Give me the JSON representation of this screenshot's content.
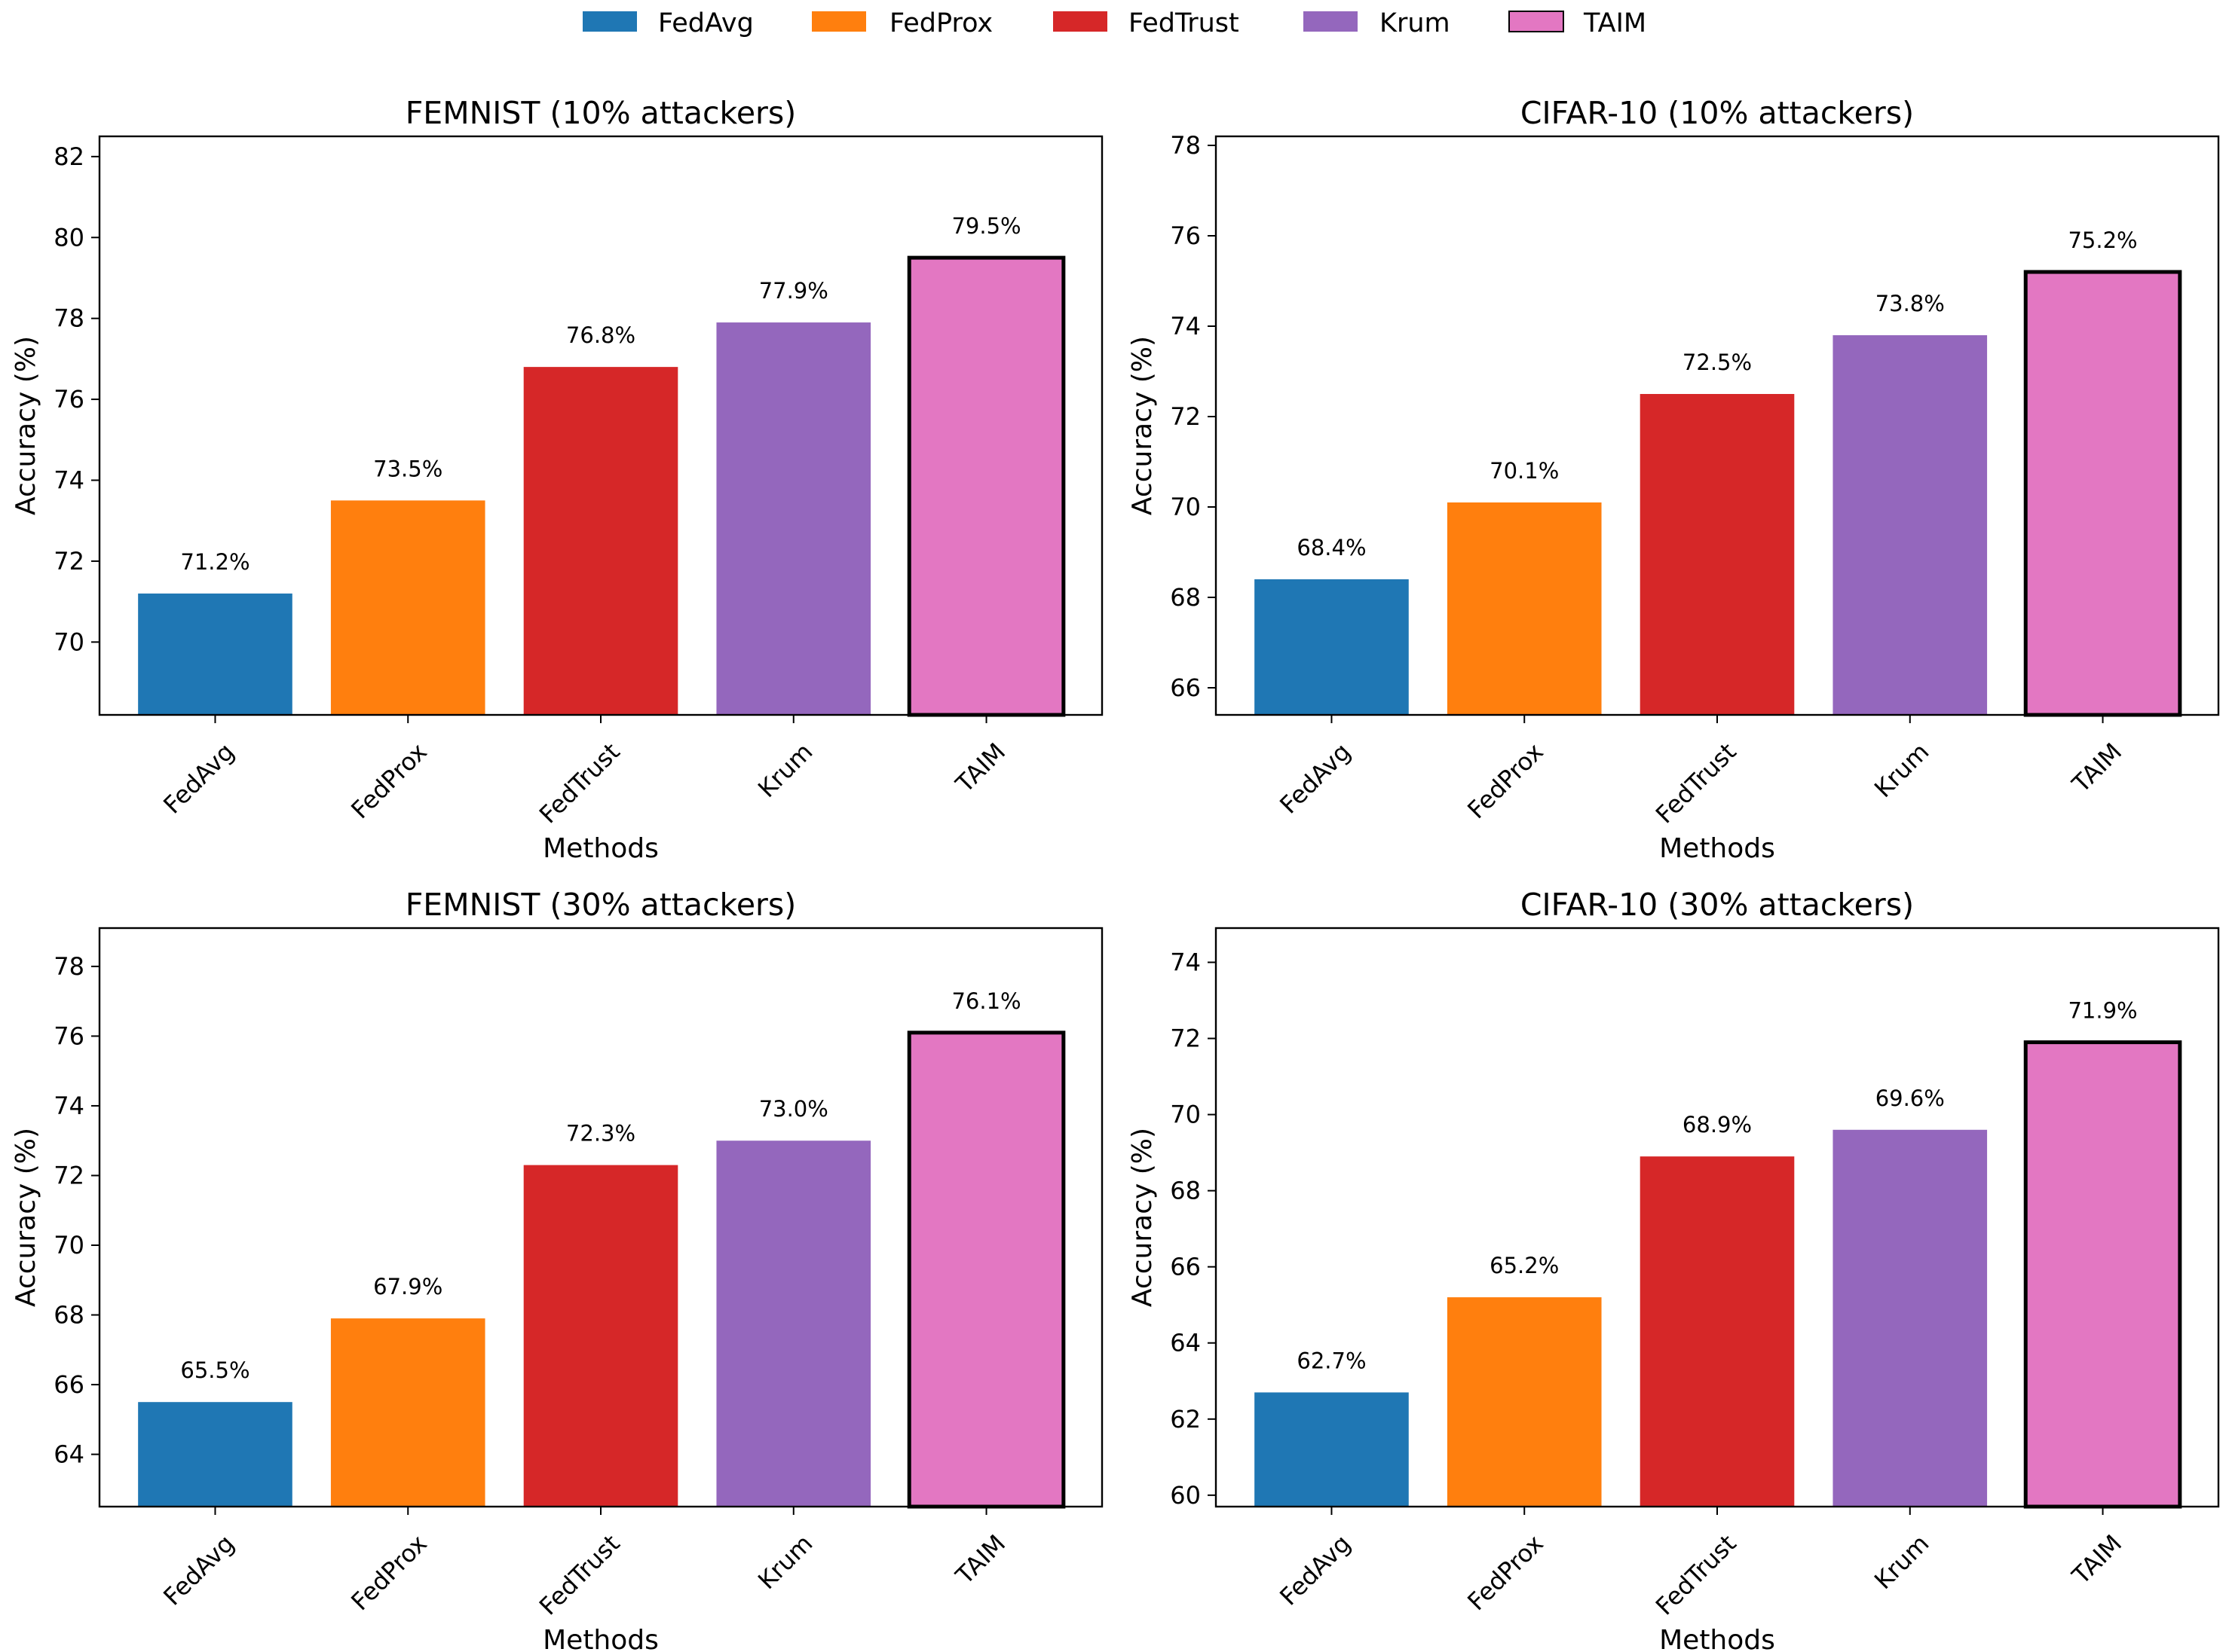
{
  "legend": {
    "items": [
      {
        "label": "FedAvg",
        "color": "#1f77b4"
      },
      {
        "label": "FedProx",
        "color": "#ff7f0e"
      },
      {
        "label": "FedTrust",
        "color": "#d62728"
      },
      {
        "label": "Krum",
        "color": "#9467bd"
      },
      {
        "label": "TAIM",
        "color": "#e377c2"
      }
    ]
  },
  "chart_data": [
    {
      "type": "bar",
      "title": "FEMNIST (10% attackers)",
      "categories": [
        "FedAvg",
        "FedProx",
        "FedTrust",
        "Krum",
        "TAIM"
      ],
      "values": [
        71.2,
        73.5,
        76.8,
        77.9,
        79.5
      ],
      "value_labels": [
        "71.2%",
        "73.5%",
        "76.8%",
        "77.9%",
        "79.5%"
      ],
      "xlabel": "Methods",
      "ylabel": "Accuracy (%)",
      "ylim": [
        68.2,
        82.5
      ],
      "yticks": [
        70,
        72,
        74,
        76,
        78,
        80,
        82
      ],
      "highlight": "TAIM"
    },
    {
      "type": "bar",
      "title": "CIFAR-10 (10% attackers)",
      "categories": [
        "FedAvg",
        "FedProx",
        "FedTrust",
        "Krum",
        "TAIM"
      ],
      "values": [
        68.4,
        70.1,
        72.5,
        73.8,
        75.2
      ],
      "value_labels": [
        "68.4%",
        "70.1%",
        "72.5%",
        "73.8%",
        "75.2%"
      ],
      "xlabel": "Methods",
      "ylabel": "Accuracy (%)",
      "ylim": [
        65.4,
        78.2
      ],
      "yticks": [
        66,
        68,
        70,
        72,
        74,
        76,
        78
      ],
      "highlight": "TAIM"
    },
    {
      "type": "bar",
      "title": "FEMNIST (30% attackers)",
      "categories": [
        "FedAvg",
        "FedProx",
        "FedTrust",
        "Krum",
        "TAIM"
      ],
      "values": [
        65.5,
        67.9,
        72.3,
        73.0,
        76.1
      ],
      "value_labels": [
        "65.5%",
        "67.9%",
        "72.3%",
        "73.0%",
        "76.1%"
      ],
      "xlabel": "Methods",
      "ylabel": "Accuracy (%)",
      "ylim": [
        62.5,
        79.1
      ],
      "yticks": [
        64,
        66,
        68,
        70,
        72,
        74,
        76,
        78
      ],
      "highlight": "TAIM"
    },
    {
      "type": "bar",
      "title": "CIFAR-10 (30% attackers)",
      "categories": [
        "FedAvg",
        "FedProx",
        "FedTrust",
        "Krum",
        "TAIM"
      ],
      "values": [
        62.7,
        65.2,
        68.9,
        69.6,
        71.9
      ],
      "value_labels": [
        "62.7%",
        "65.2%",
        "68.9%",
        "69.6%",
        "71.9%"
      ],
      "xlabel": "Methods",
      "ylabel": "Accuracy (%)",
      "ylim": [
        59.7,
        74.9
      ],
      "yticks": [
        60,
        62,
        64,
        66,
        68,
        70,
        72,
        74
      ],
      "highlight": "TAIM"
    }
  ]
}
